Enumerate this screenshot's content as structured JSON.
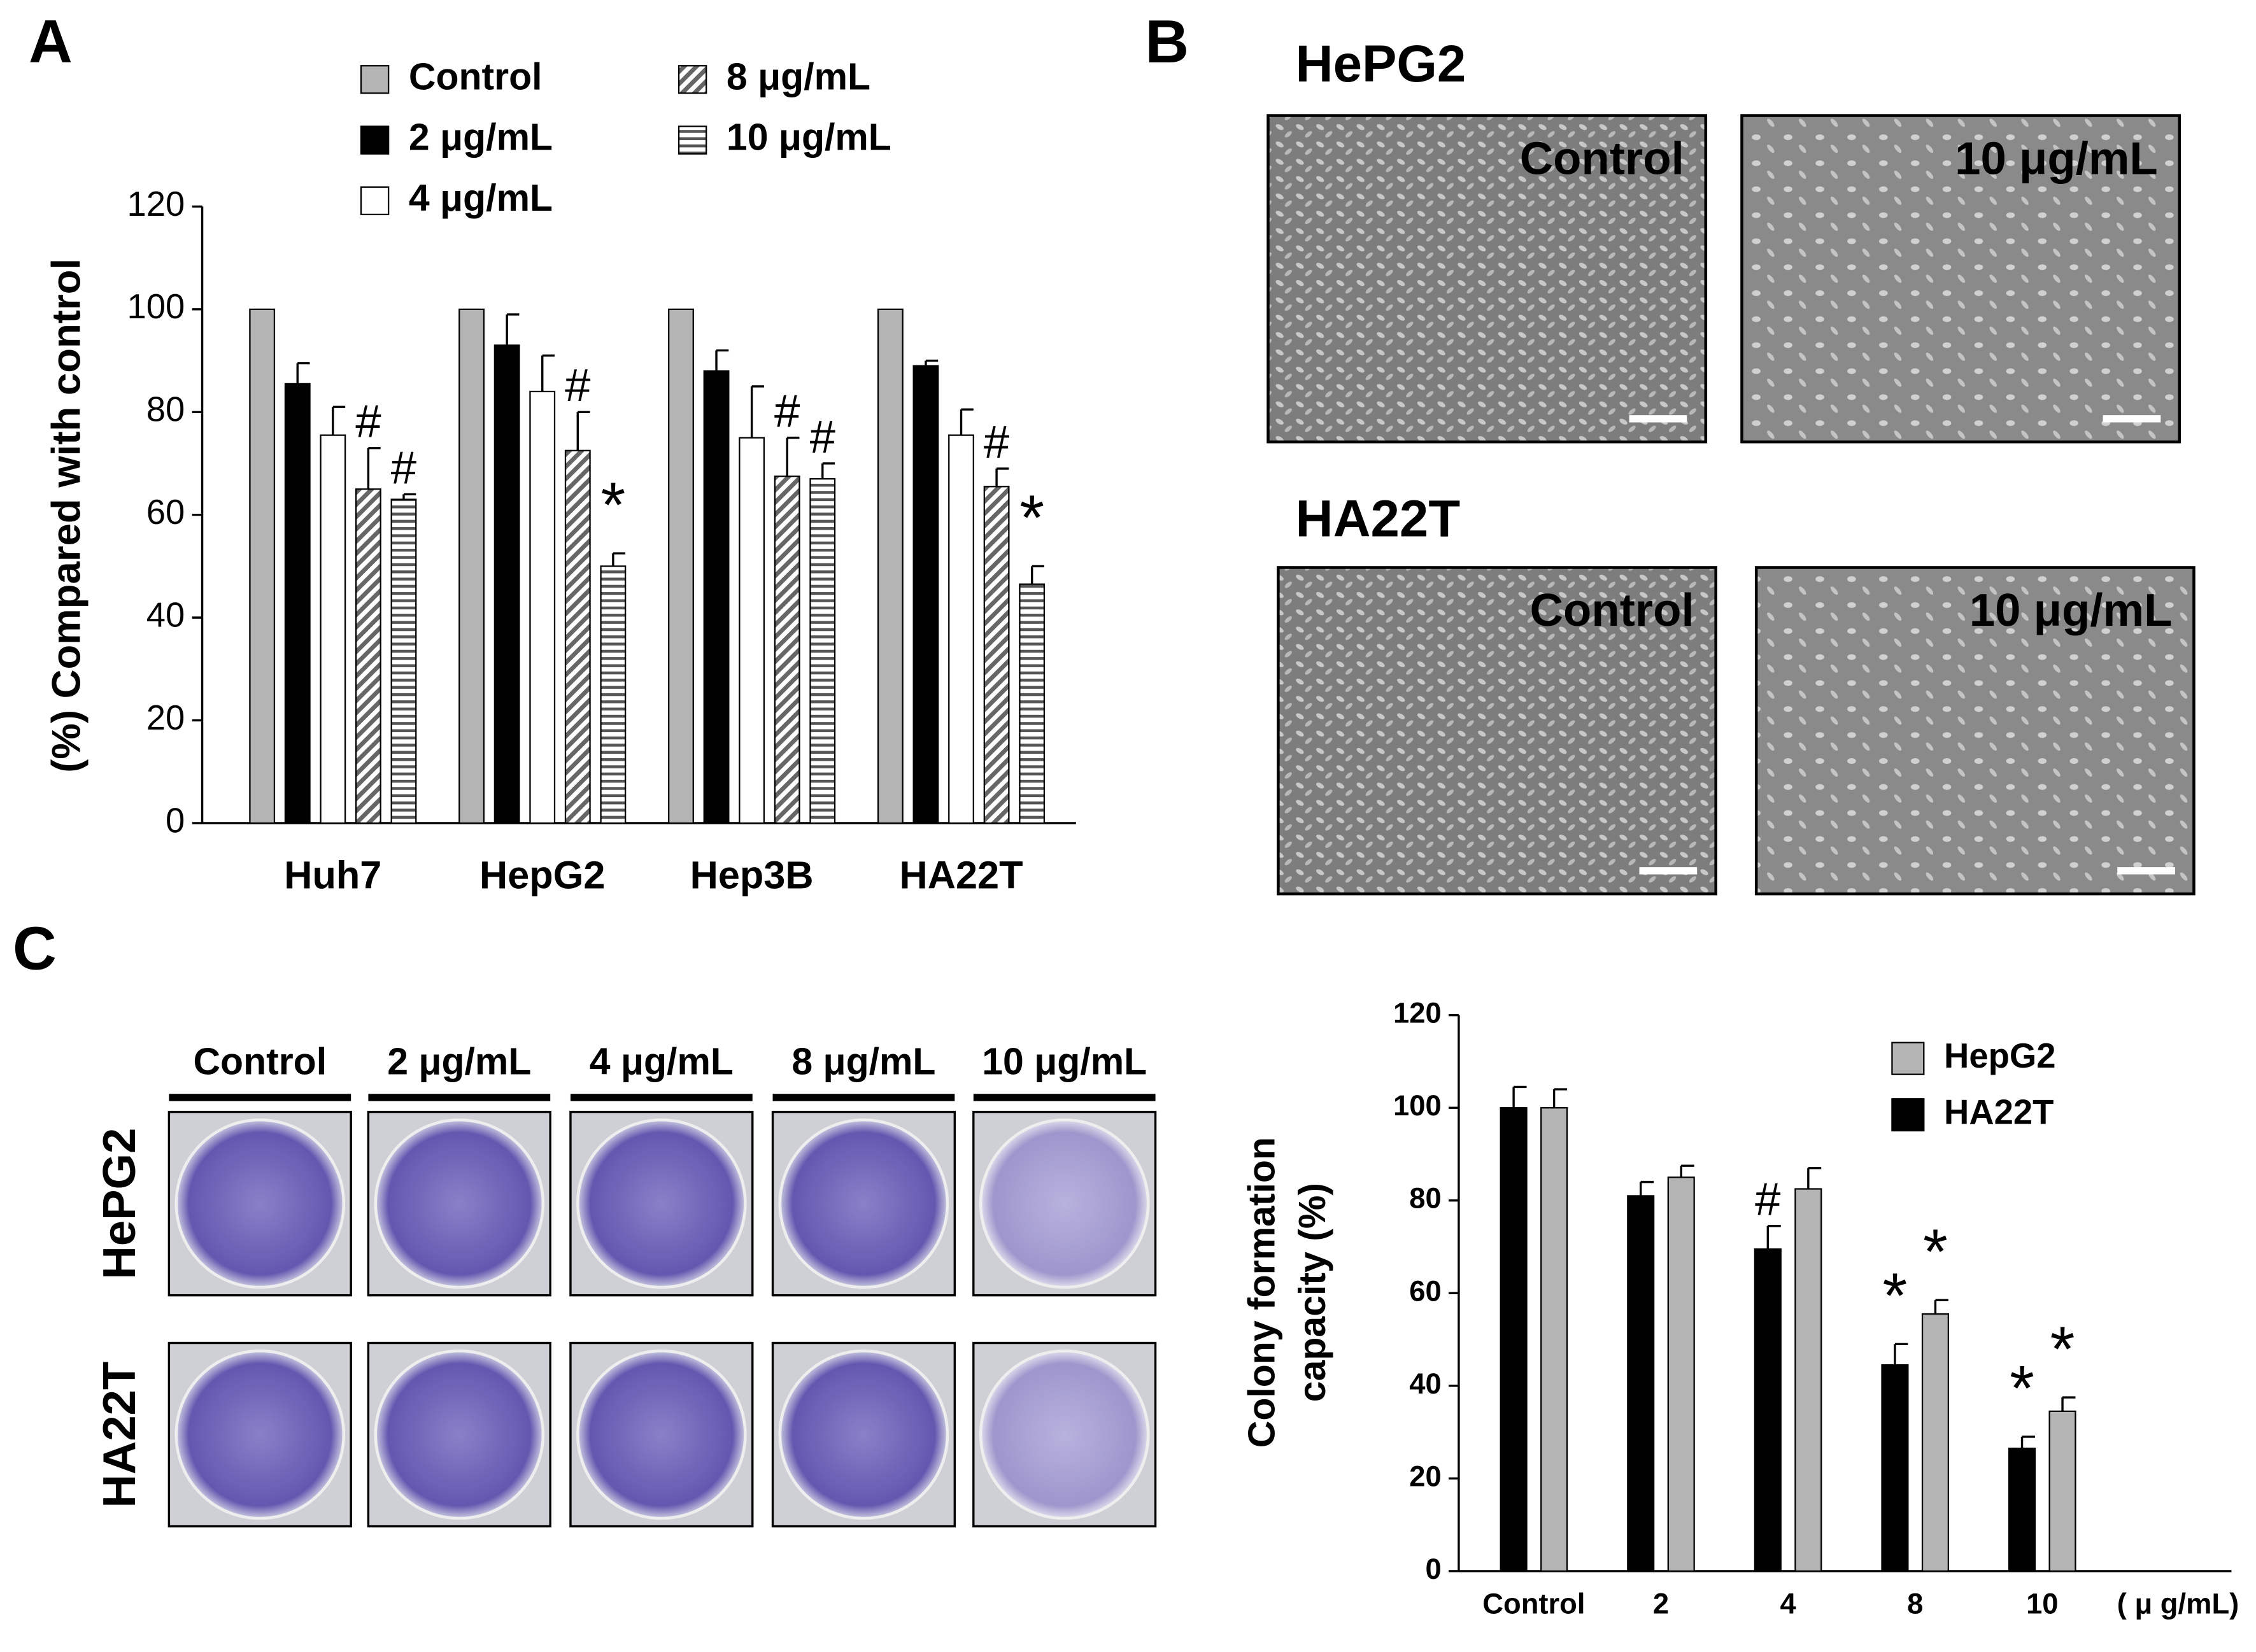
{
  "panel_labels": [
    "A",
    "B",
    "C"
  ],
  "chart_data": [
    {
      "type": "bar",
      "y_label": [
        "(%) Compared with control"
      ],
      "categories": [
        "Huh7",
        "HepG2",
        "Hep3B",
        "HA22T"
      ],
      "ylim": [
        0,
        120
      ],
      "yticks": [
        0,
        20,
        40,
        60,
        80,
        100,
        120
      ],
      "grid": false,
      "legend": "upper center",
      "series": [
        {
          "name": "Control",
          "color": "#b4b4b4",
          "values": [
            100,
            100,
            100,
            100
          ],
          "errors": [
            null,
            null,
            null,
            null
          ],
          "annotations": [
            null,
            null,
            null,
            null
          ]
        },
        {
          "name": "2 μg/mL",
          "color": "#000000",
          "values": [
            85.5,
            93,
            88,
            89
          ],
          "errors": [
            4,
            6,
            4,
            1
          ],
          "annotations": [
            null,
            null,
            null,
            null
          ]
        },
        {
          "name": "4 μg/mL",
          "color": "#ffffff",
          "values": [
            75.5,
            84,
            75,
            75.5
          ],
          "errors": [
            5.5,
            7,
            10,
            5
          ],
          "annotations": [
            null,
            null,
            null,
            null
          ]
        },
        {
          "name": "8 μg/mL",
          "color": "#999999",
          "pattern": "diagonal",
          "values": [
            65,
            72.5,
            67.5,
            65.5
          ],
          "errors": [
            8,
            7.5,
            7.5,
            3.5
          ],
          "annotations": [
            "#",
            "#",
            "#",
            "#"
          ]
        },
        {
          "name": "10 μg/mL",
          "color": "#999999",
          "pattern": "horizontal",
          "values": [
            63,
            50,
            67,
            46.5
          ],
          "errors": [
            1,
            2.5,
            3,
            3.5
          ],
          "annotations": [
            "#",
            "*",
            "#",
            "*"
          ]
        }
      ]
    },
    {
      "type": "bar",
      "y_label": [
        "Colony formation",
        "capacity (%)"
      ],
      "x_label": "( μ g/mL)",
      "categories": [
        "Control",
        "2",
        "4",
        "8",
        "10"
      ],
      "ylim": [
        0,
        120
      ],
      "yticks": [
        0,
        20,
        40,
        60,
        80,
        100,
        120
      ],
      "grid": false,
      "legend": "upper right",
      "series": [
        {
          "name": "HA22T",
          "color": "#000000",
          "values": [
            100,
            81,
            69.5,
            44.5,
            26.5
          ],
          "errors": [
            4.5,
            3,
            5,
            4.5,
            2.5
          ],
          "annotations": [
            null,
            null,
            "#",
            "*",
            "*"
          ]
        },
        {
          "name": "HepG2",
          "color": "#b4b4b4",
          "values": [
            100,
            85,
            82.5,
            55.5,
            34.5
          ],
          "errors": [
            4,
            2.5,
            4.5,
            3,
            3
          ],
          "annotations": [
            null,
            null,
            null,
            "*",
            "*"
          ]
        }
      ]
    }
  ],
  "micrographs": {
    "rows": [
      {
        "label": "HePG2",
        "panels": [
          "Control",
          "10 μg/mL"
        ]
      },
      {
        "label": "HA22T",
        "panels": [
          "Control",
          "10 μg/mL"
        ]
      }
    ]
  },
  "colony": {
    "columns": [
      "Control",
      "2 μg/mL",
      "4 μg/mL",
      "8 μg/mL",
      "10 μg/mL"
    ],
    "rows": [
      "HePG2",
      "HA22T"
    ]
  }
}
